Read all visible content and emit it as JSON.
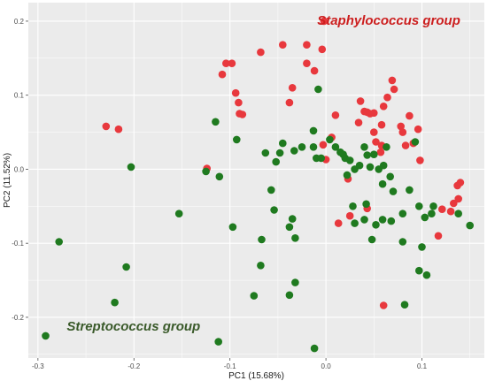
{
  "chart_data": {
    "type": "scatter",
    "xlabel": "PC1 (15.68%)",
    "ylabel": "PC2 (11.52%)",
    "xlim": [
      -0.31,
      0.165
    ],
    "ylim": [
      -0.255,
      0.225
    ],
    "xticks": [
      -0.3,
      -0.2,
      -0.1,
      0.0,
      0.1
    ],
    "xtick_labels": [
      "-0.3",
      "-0.2",
      "-0.1",
      "0.0",
      "0.1"
    ],
    "yticks": [
      -0.2,
      -0.1,
      0.0,
      0.1,
      0.2
    ],
    "ytick_labels": [
      "-0.2",
      "-0.1",
      "0.0",
      "0.1",
      "0.2"
    ],
    "grid": true,
    "background": "#ebebeb",
    "grid_color": "#ffffff",
    "annotations": [
      {
        "text": "Staphylococcus group",
        "x": 0.14,
        "y": 0.195,
        "color": "#cc1f1f",
        "anchor": "end"
      },
      {
        "text": "Streptococcus group",
        "x": -0.27,
        "y": -0.218,
        "color": "#3a5a2a",
        "anchor": "start"
      }
    ],
    "series": [
      {
        "color": "#e8383d",
        "points": [
          [
            -0.229,
            0.058
          ],
          [
            -0.216,
            0.054
          ],
          [
            -0.124,
            0.001
          ],
          [
            -0.108,
            0.128
          ],
          [
            -0.104,
            0.143
          ],
          [
            -0.098,
            0.143
          ],
          [
            -0.094,
            0.103
          ],
          [
            -0.091,
            0.09
          ],
          [
            -0.087,
            0.074
          ],
          [
            -0.09,
            0.075
          ],
          [
            -0.068,
            0.158
          ],
          [
            -0.045,
            0.168
          ],
          [
            -0.038,
            0.09
          ],
          [
            -0.035,
            0.11
          ],
          [
            -0.02,
            0.143
          ],
          [
            -0.02,
            0.168
          ],
          [
            -0.012,
            0.133
          ],
          [
            -0.004,
            0.162
          ],
          [
            -0.003,
            0.033
          ],
          [
            0.0,
            0.013
          ],
          [
            0.006,
            0.043
          ],
          [
            0.01,
            0.073
          ],
          [
            -0.002,
            0.2
          ],
          [
            0.034,
            0.063
          ],
          [
            0.036,
            0.092
          ],
          [
            0.04,
            0.078
          ],
          [
            0.043,
            0.077
          ],
          [
            0.046,
            0.075
          ],
          [
            0.05,
            0.05
          ],
          [
            0.052,
            0.037
          ],
          [
            0.057,
            0.023
          ],
          [
            0.058,
            0.032
          ],
          [
            0.058,
            0.06
          ],
          [
            0.06,
            0.085
          ],
          [
            0.064,
            0.097
          ],
          [
            0.069,
            0.12
          ],
          [
            0.071,
            0.108
          ],
          [
            0.078,
            0.058
          ],
          [
            0.08,
            0.05
          ],
          [
            0.083,
            0.032
          ],
          [
            0.087,
            0.072
          ],
          [
            0.091,
            0.035
          ],
          [
            0.096,
            0.054
          ],
          [
            0.098,
            0.012
          ],
          [
            0.117,
            -0.09
          ],
          [
            0.121,
            -0.054
          ],
          [
            0.13,
            -0.057
          ],
          [
            0.133,
            -0.046
          ],
          [
            0.137,
            -0.022
          ],
          [
            0.138,
            -0.04
          ],
          [
            0.14,
            -0.018
          ],
          [
            0.043,
            -0.053
          ],
          [
            0.023,
            -0.013
          ],
          [
            0.025,
            -0.063
          ],
          [
            0.013,
            -0.073
          ],
          [
            0.06,
            -0.184
          ],
          [
            0.05,
            0.076
          ]
        ]
      },
      {
        "color": "#1f7a1f",
        "points": [
          [
            -0.278,
            -0.098
          ],
          [
            -0.292,
            -0.225
          ],
          [
            -0.203,
            0.003
          ],
          [
            -0.208,
            -0.132
          ],
          [
            -0.22,
            -0.18
          ],
          [
            -0.153,
            -0.06
          ],
          [
            -0.125,
            -0.003
          ],
          [
            -0.115,
            0.064
          ],
          [
            -0.111,
            -0.01
          ],
          [
            -0.093,
            0.04
          ],
          [
            -0.097,
            -0.078
          ],
          [
            -0.067,
            -0.095
          ],
          [
            -0.063,
            0.022
          ],
          [
            -0.048,
            0.022
          ],
          [
            -0.045,
            0.035
          ],
          [
            -0.033,
            0.025
          ],
          [
            -0.025,
            0.03
          ],
          [
            -0.013,
            0.03
          ],
          [
            -0.01,
            0.015
          ],
          [
            -0.005,
            0.015
          ],
          [
            -0.013,
            0.052
          ],
          [
            -0.052,
            0.01
          ],
          [
            -0.054,
            -0.055
          ],
          [
            -0.057,
            -0.028
          ],
          [
            -0.035,
            -0.067
          ],
          [
            -0.032,
            -0.093
          ],
          [
            -0.038,
            -0.078
          ],
          [
            -0.068,
            -0.13
          ],
          [
            -0.038,
            -0.17
          ],
          [
            -0.032,
            -0.153
          ],
          [
            -0.075,
            -0.171
          ],
          [
            -0.012,
            -0.242
          ],
          [
            -0.112,
            -0.233
          ],
          [
            -0.008,
            0.108
          ],
          [
            0.004,
            0.04
          ],
          [
            0.01,
            0.03
          ],
          [
            0.015,
            0.023
          ],
          [
            0.018,
            0.02
          ],
          [
            0.02,
            0.015
          ],
          [
            0.025,
            0.012
          ],
          [
            0.03,
            0.0
          ],
          [
            0.035,
            0.005
          ],
          [
            0.04,
            0.03
          ],
          [
            0.043,
            0.019
          ],
          [
            0.046,
            0.003
          ],
          [
            0.05,
            0.02
          ],
          [
            0.055,
            0.0
          ],
          [
            0.06,
            0.005
          ],
          [
            0.063,
            0.03
          ],
          [
            0.067,
            -0.01
          ],
          [
            0.068,
            -0.07
          ],
          [
            0.07,
            -0.03
          ],
          [
            0.08,
            -0.06
          ],
          [
            0.087,
            -0.028
          ],
          [
            0.093,
            0.037
          ],
          [
            0.097,
            -0.05
          ],
          [
            0.1,
            -0.105
          ],
          [
            0.103,
            -0.065
          ],
          [
            0.11,
            -0.06
          ],
          [
            0.112,
            -0.05
          ],
          [
            0.105,
            -0.143
          ],
          [
            0.097,
            -0.137
          ],
          [
            0.042,
            -0.047
          ],
          [
            0.052,
            -0.075
          ],
          [
            0.048,
            -0.095
          ],
          [
            0.059,
            -0.068
          ],
          [
            0.028,
            -0.05
          ],
          [
            0.03,
            -0.073
          ],
          [
            0.08,
            -0.098
          ],
          [
            0.082,
            -0.183
          ],
          [
            0.138,
            -0.06
          ],
          [
            0.15,
            -0.076
          ],
          [
            0.04,
            -0.068
          ],
          [
            0.022,
            -0.008
          ],
          [
            0.059,
            -0.02
          ]
        ]
      }
    ]
  }
}
